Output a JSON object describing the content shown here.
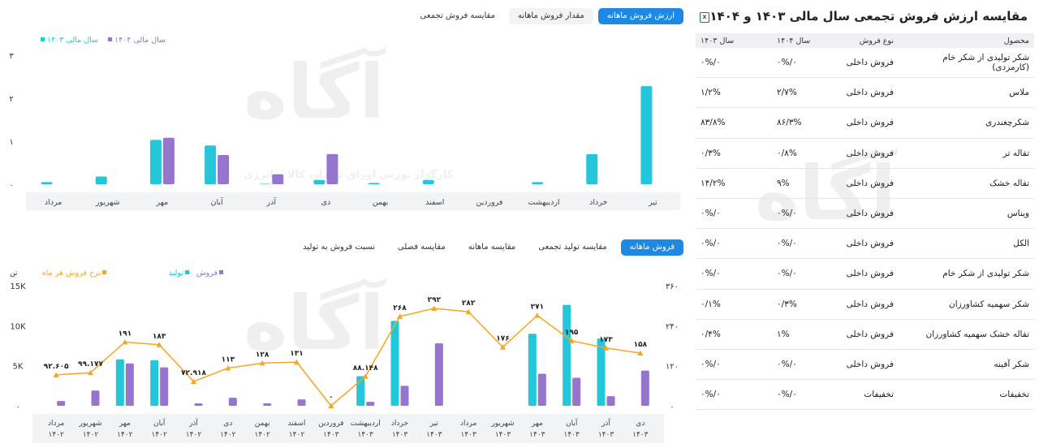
{
  "top_tabs": [
    "ارزش فروش ماهانه",
    "مقدار فروش ماهانه",
    "مقایسه فروش تجمعی"
  ],
  "bottom_tabs": [
    "فروش ماهانه",
    "مقایسه تولید تجمعی",
    "مقایسه ماهانه",
    "مقایسه فصلی",
    "نسبت فروش به تولید"
  ],
  "watermark": {
    "logo": "آگاه",
    "tagline": "کارگزار بورس اوراق بهادار، کالا و انرژی"
  },
  "colors": {
    "teal": "#26c6da",
    "purple": "#9575cd",
    "orange": "#f5a623",
    "accent": "#1e88e5"
  },
  "panel": {
    "title": "مقایسه ارزش فروش تجمعی سال مالی ۱۴۰۳ و ۱۴۰۴",
    "export_icon": "excel-export-icon",
    "headers": [
      "محصول",
      "نوع فروش",
      "سال ۱۴۰۴",
      "سال ۱۴۰۳"
    ],
    "rows": [
      [
        "شکر تولیدی از شکر خام (کارمزدی)",
        "فروش داخلی",
        "۰%/۰",
        "۰%/۰"
      ],
      [
        "ملاس",
        "فروش داخلی",
        "۲/۷%",
        "۱/۲%"
      ],
      [
        "شکرچغندری",
        "فروش داخلی",
        "۸۶/۳%",
        "۸۳/۸%"
      ],
      [
        "تفاله تر",
        "فروش داخلی",
        "۰/۸%",
        "۰/۳%"
      ],
      [
        "تفاله خشک",
        "فروش داخلی",
        "۹%",
        "۱۴/۲%"
      ],
      [
        "ویناس",
        "فروش داخلی",
        "۰%/۰",
        "۰%/۰"
      ],
      [
        "الکل",
        "فروش داخلی",
        "۰%/۰",
        "۰%/۰"
      ],
      [
        "شکر تولیدی از شکر خام",
        "فروش داخلی",
        "۰%/۰",
        "۰%/۰"
      ],
      [
        "شکر سهمیه کشاورزان",
        "فروش داخلی",
        "۰/۳%",
        "۰/۱%"
      ],
      [
        "تفاله خشک سهمیه کشاورزان",
        "فروش داخلی",
        "۱%",
        "۰/۴%"
      ],
      [
        "شکر آفینه",
        "فروش داخلی",
        "۰%/۰",
        "۰%/۰"
      ],
      [
        "تخفیفات",
        "تخفیفات",
        "۰%/۰",
        "۰%/۰"
      ]
    ]
  },
  "chart_data": [
    {
      "type": "bar",
      "legend": [
        "سال مالی ۱۴۰۳",
        "سال مالی ۱۴۰۴"
      ],
      "legend_placement": "top-left",
      "categories": [
        "تیر",
        "خرداد",
        "اردیبهشت",
        "فروردین",
        "اسفند",
        "بهمن",
        "دی",
        "آذر",
        "آبان",
        "مهر",
        "شهریور",
        "مرداد"
      ],
      "y_ticks": [
        "۰",
        "۱",
        "۲",
        "۳"
      ],
      "ylim": [
        0,
        3
      ],
      "grid": false,
      "series": [
        {
          "name": "سال مالی ۱۴۰۳",
          "color": "#26c6da",
          "values": [
            2.28,
            0.7,
            0.05,
            0,
            0.1,
            0.03,
            0.1,
            0.01,
            0.9,
            1.03,
            0.18,
            0.05
          ]
        },
        {
          "name": "سال مالی ۱۴۰۴",
          "color": "#9575cd",
          "values": [
            0,
            0,
            0,
            0,
            0,
            0,
            0.7,
            0.23,
            0.68,
            1.08,
            0,
            0
          ]
        }
      ]
    },
    {
      "type": "bar",
      "legend": [
        "فروش",
        "تولید",
        "نرخ فروش هر ماه"
      ],
      "legend_placement": "top-left",
      "y_left_unit": "تن",
      "y_left_ticks": [
        "۰",
        "5K",
        "10K",
        "15K"
      ],
      "y_right_ticks": [
        "۰",
        "۱۲۰",
        "۲۴۰",
        "۳۶۰"
      ],
      "ylim_left": [
        0,
        15000
      ],
      "ylim_right": [
        0,
        360
      ],
      "grid": false,
      "categories": [
        [
          "دی",
          "۱۴۰۳"
        ],
        [
          "آذر",
          "۱۴۰۳"
        ],
        [
          "آبان",
          "۱۴۰۳"
        ],
        [
          "مهر",
          "۱۴۰۳"
        ],
        [
          "شهریور",
          "۱۴۰۳"
        ],
        [
          "مرداد",
          "۱۴۰۳"
        ],
        [
          "تیر",
          "۱۴۰۳"
        ],
        [
          "خرداد",
          "۱۴۰۳"
        ],
        [
          "اردیبهشت",
          "۱۴۰۳"
        ],
        [
          "فروردین",
          "۱۴۰۳"
        ],
        [
          "اسفند",
          "۱۴۰۲"
        ],
        [
          "بهمن",
          "۱۴۰۲"
        ],
        [
          "دی",
          "۱۴۰۲"
        ],
        [
          "آذر",
          "۱۴۰۲"
        ],
        [
          "آبان",
          "۱۴۰۲"
        ],
        [
          "مهر",
          "۱۴۰۲"
        ],
        [
          "شهریور",
          "۱۴۰۲"
        ],
        [
          "مرداد",
          "۱۴۰۲"
        ]
      ],
      "series": [
        {
          "name": "تولید",
          "kind": "bar",
          "axis": "left",
          "color": "#26c6da",
          "values": [
            0,
            8400,
            12600,
            9000,
            0,
            0,
            0,
            10600,
            3700,
            0,
            0,
            0,
            0,
            0,
            5700,
            5800,
            0,
            0
          ]
        },
        {
          "name": "فروش",
          "kind": "bar",
          "axis": "left",
          "color": "#9575cd",
          "values": [
            4400,
            1200,
            3500,
            4000,
            0,
            0,
            7800,
            2500,
            500,
            0,
            800,
            300,
            1000,
            300,
            4800,
            5300,
            1900,
            600
          ]
        },
        {
          "name": "نرخ فروش هر ماه",
          "kind": "line",
          "axis": "right",
          "color": "#f5a623",
          "values": [
            158,
            173,
            195,
            271,
            176,
            282,
            292,
            268,
            88.148,
            0,
            131,
            128,
            113,
            72.918,
            183,
            191,
            99.177,
            92.605
          ],
          "labels": [
            "۱۵۸",
            "۱۷۳",
            "۱۹۵",
            "۲۷۱",
            "۱۷۶",
            "۲۸۲",
            "۲۹۲",
            "۲۶۸",
            "۸۸.۱۴۸",
            "۰",
            "۱۳۱",
            "۱۲۸",
            "۱۱۳",
            "۷۲.۹۱۸",
            "۱۸۳",
            "۱۹۱",
            "۹۹.۱۷۷",
            "۹۲.۶۰۵"
          ]
        }
      ]
    }
  ]
}
